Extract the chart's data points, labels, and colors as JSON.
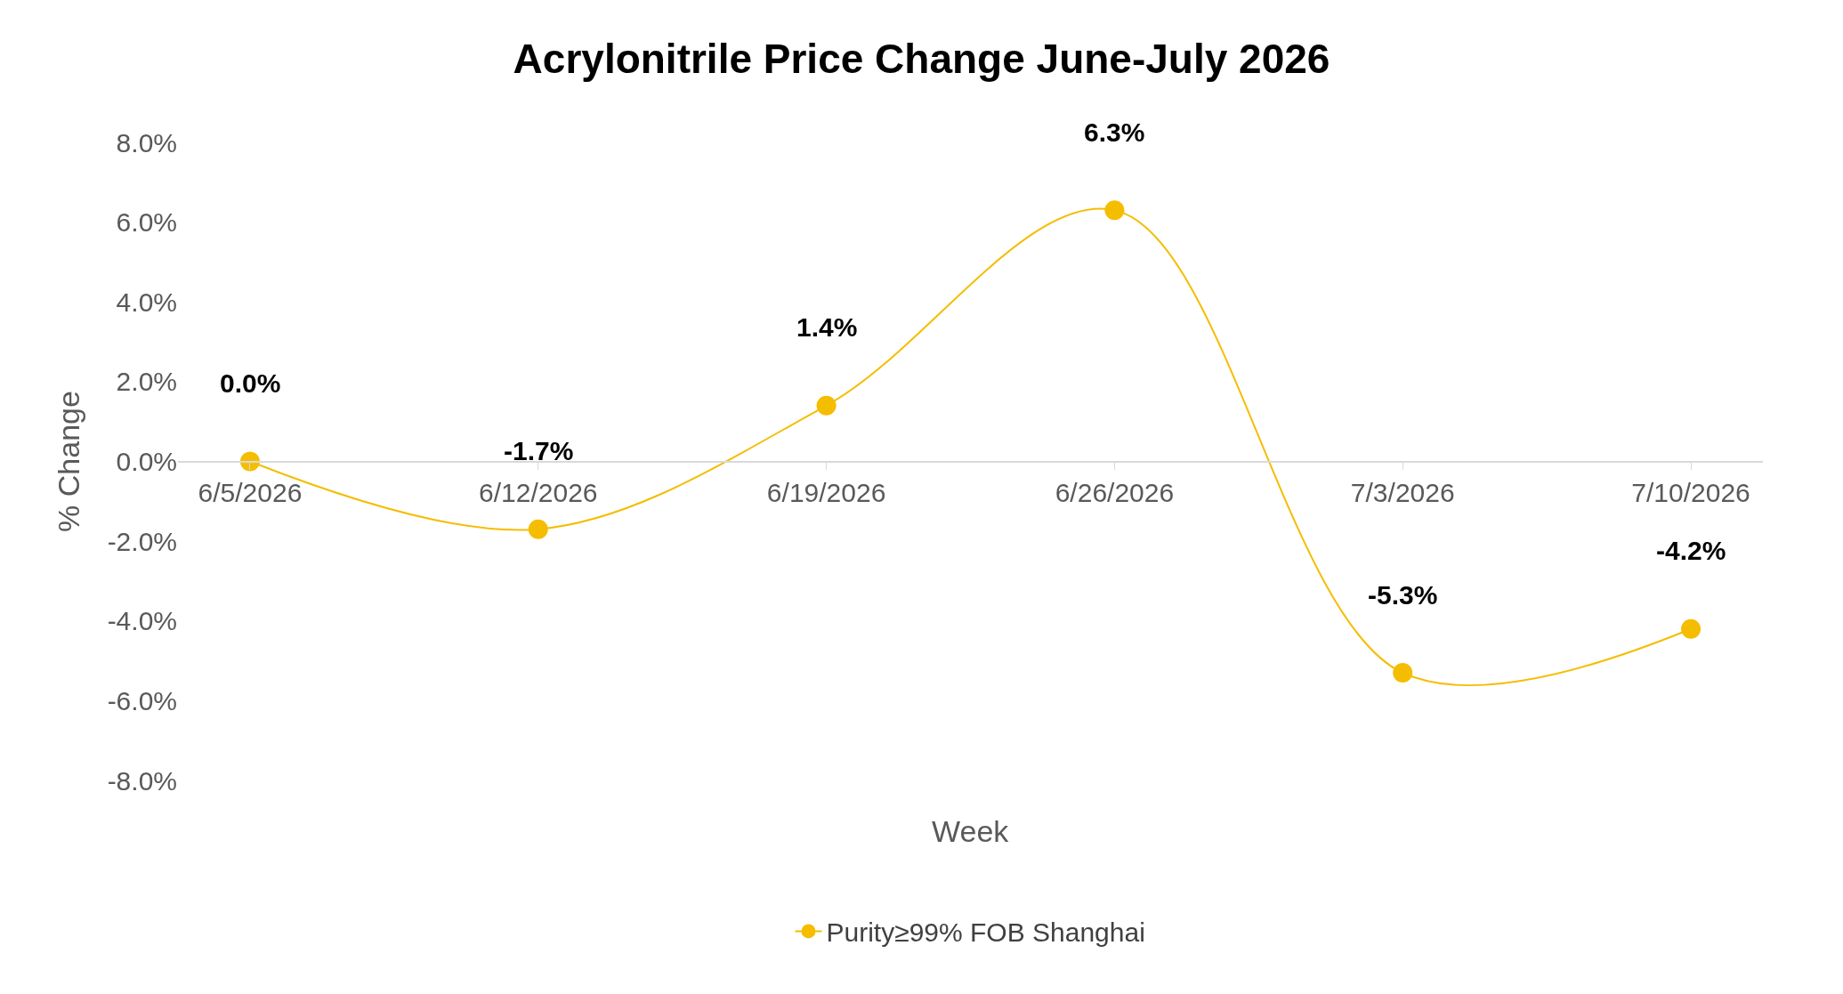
{
  "chart_data": {
    "type": "line",
    "title": "Acrylonitrile Price Change June-July 2026",
    "xlabel": "Week",
    "ylabel": "% Change",
    "categories": [
      "6/5/2026",
      "6/12/2026",
      "6/19/2026",
      "6/26/2026",
      "7/3/2026",
      "7/10/2026"
    ],
    "series": [
      {
        "name": "Purity≥99% FOB Shanghai",
        "color": "#f5bd00",
        "values": [
          0.0,
          -1.7,
          1.4,
          6.3,
          -5.3,
          -4.2
        ],
        "value_labels": [
          "0.0%",
          "-1.7%",
          "1.4%",
          "6.3%",
          "-5.3%",
          "-4.2%"
        ]
      }
    ],
    "ylim": [
      -8,
      8
    ],
    "yticks": [
      {
        "value": -8,
        "label": "-8.0%"
      },
      {
        "value": -6,
        "label": "-6.0%"
      },
      {
        "value": -4,
        "label": "-4.0%"
      },
      {
        "value": -2,
        "label": "-2.0%"
      },
      {
        "value": 0,
        "label": "0.0%"
      },
      {
        "value": 2,
        "label": "2.0%"
      },
      {
        "value": 4,
        "label": "4.0%"
      },
      {
        "value": 6,
        "label": "6.0%"
      },
      {
        "value": 8,
        "label": "8.0%"
      }
    ],
    "legend": "bottom",
    "marker": "circle",
    "line_style": "solid"
  }
}
